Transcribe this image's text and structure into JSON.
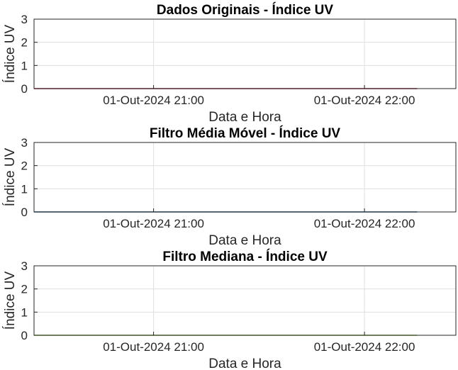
{
  "chart_data": [
    {
      "type": "line",
      "title": "Dados Originais - Índice UV",
      "xlabel": "Data e Hora",
      "ylabel": "Índice UV",
      "xlim": [
        "01-Out-2024 20:26",
        "01-Out-2024 22:26"
      ],
      "ylim": [
        0,
        3
      ],
      "yticks": [
        0,
        1,
        2,
        3
      ],
      "xticks": [
        "01-Out-2024 21:00",
        "01-Out-2024 22:00"
      ],
      "grid": true,
      "series": [
        {
          "color": "#a2142f",
          "x": [
            "01-Out-2024 20:26",
            "01-Out-2024 22:15"
          ],
          "values": [
            0,
            0
          ]
        }
      ]
    },
    {
      "type": "line",
      "title": "Filtro Média Móvel - Índice UV",
      "xlabel": "Data e Hora",
      "ylabel": "Índice UV",
      "xlim": [
        "01-Out-2024 20:26",
        "01-Out-2024 22:26"
      ],
      "ylim": [
        0,
        3
      ],
      "yticks": [
        0,
        1,
        2,
        3
      ],
      "xticks": [
        "01-Out-2024 21:00",
        "01-Out-2024 22:00"
      ],
      "grid": true,
      "series": [
        {
          "color": "#1f4e79",
          "x": [
            "01-Out-2024 20:26",
            "01-Out-2024 22:15"
          ],
          "values": [
            0,
            0
          ]
        }
      ]
    },
    {
      "type": "line",
      "title": "Filtro Mediana - Índice UV",
      "xlabel": "Data e Hora",
      "ylabel": "Índice UV",
      "xlim": [
        "01-Out-2024 20:26",
        "01-Out-2024 22:26"
      ],
      "ylim": [
        0,
        3
      ],
      "yticks": [
        0,
        1,
        2,
        3
      ],
      "xticks": [
        "01-Out-2024 21:00",
        "01-Out-2024 22:00"
      ],
      "grid": true,
      "series": [
        {
          "color": "#77ac30",
          "x": [
            "01-Out-2024 20:26",
            "01-Out-2024 22:15"
          ],
          "values": [
            0,
            0
          ]
        }
      ]
    }
  ]
}
